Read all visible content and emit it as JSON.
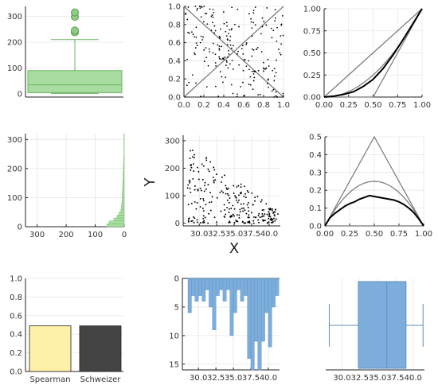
{
  "colors": {
    "green_fill": "#A8DCA0",
    "green_stroke": "#6DB463",
    "green_dot": "#8ECF84",
    "blue_fill": "#7DAEDB",
    "blue_stroke": "#5B8FC2",
    "line_gray": "#777777",
    "yellow": "#FFF0A8",
    "dark": "#444444",
    "dot": "#000000",
    "grid": "#e6e6e6"
  },
  "figure": {
    "x_axis_label": "X",
    "y_axis_label": "Y"
  },
  "chart_data": [
    {
      "id": "p1",
      "type": "box",
      "orientation": "vertical",
      "ylim": [
        0,
        320
      ],
      "yticks": [
        0,
        100,
        200,
        300
      ],
      "box": {
        "q1": 5,
        "median": 35,
        "q3": 90,
        "whisker_low": 2,
        "whisker_high": 210
      },
      "outliers": [
        238,
        245,
        298,
        315
      ]
    },
    {
      "id": "p2",
      "type": "scatter",
      "xlim": [
        0,
        1
      ],
      "ylim": [
        0,
        1
      ],
      "xticks": [
        0.0,
        0.2,
        0.4,
        0.6,
        0.8,
        1.0
      ],
      "yticks": [
        0.0,
        0.2,
        0.4,
        0.6,
        0.8,
        1.0
      ],
      "reference_lines": [
        {
          "from": [
            0,
            0
          ],
          "to": [
            1,
            1
          ]
        },
        {
          "from": [
            0,
            1
          ],
          "to": [
            1,
            0
          ]
        }
      ],
      "n_points": 220,
      "points_generated_from": "rank copula of (X, Y)"
    },
    {
      "id": "p3",
      "type": "line",
      "xlim": [
        0,
        1
      ],
      "ylim": [
        0,
        1
      ],
      "xticks": [
        0.0,
        0.25,
        0.5,
        0.75,
        1.0
      ],
      "yticks": [
        0.0,
        0.25,
        0.5,
        0.75,
        1.0
      ],
      "reference_lines": [
        {
          "x": [
            0,
            1
          ],
          "y": [
            0,
            1
          ]
        },
        {
          "x": [
            0,
            0.5,
            1
          ],
          "y": [
            0,
            0,
            1
          ]
        },
        {
          "function": "x^2"
        }
      ],
      "series": [
        {
          "x": [
            0,
            0.1,
            0.2,
            0.3,
            0.4,
            0.5,
            0.6,
            0.7,
            0.8,
            0.9,
            1.0
          ],
          "y": [
            0,
            0.01,
            0.03,
            0.06,
            0.12,
            0.2,
            0.32,
            0.47,
            0.64,
            0.82,
            1.0
          ]
        }
      ]
    },
    {
      "id": "p4",
      "type": "histogram",
      "orientation": "horizontal",
      "x_reversed": true,
      "xlim": [
        340,
        0
      ],
      "ylim": [
        0,
        320
      ],
      "xticks": [
        300,
        200,
        100,
        0
      ],
      "yticks": [
        0,
        100,
        200,
        300
      ],
      "bin_width": 10,
      "bins": [
        {
          "y": 0,
          "count": 60
        },
        {
          "y": 10,
          "count": 52
        },
        {
          "y": 20,
          "count": 36
        },
        {
          "y": 30,
          "count": 25
        },
        {
          "y": 40,
          "count": 18
        },
        {
          "y": 50,
          "count": 12
        },
        {
          "y": 60,
          "count": 10
        },
        {
          "y": 70,
          "count": 9
        },
        {
          "y": 80,
          "count": 8
        },
        {
          "y": 90,
          "count": 7
        },
        {
          "y": 100,
          "count": 7
        },
        {
          "y": 110,
          "count": 6
        },
        {
          "y": 120,
          "count": 6
        },
        {
          "y": 130,
          "count": 5
        },
        {
          "y": 140,
          "count": 5
        },
        {
          "y": 150,
          "count": 5
        },
        {
          "y": 160,
          "count": 4
        },
        {
          "y": 170,
          "count": 4
        },
        {
          "y": 180,
          "count": 4
        },
        {
          "y": 190,
          "count": 3
        },
        {
          "y": 200,
          "count": 3
        },
        {
          "y": 210,
          "count": 2
        },
        {
          "y": 220,
          "count": 2
        },
        {
          "y": 230,
          "count": 2
        },
        {
          "y": 240,
          "count": 1
        },
        {
          "y": 250,
          "count": 1
        },
        {
          "y": 260,
          "count": 1
        },
        {
          "y": 270,
          "count": 1
        },
        {
          "y": 280,
          "count": 1
        },
        {
          "y": 290,
          "count": 1
        },
        {
          "y": 300,
          "count": 1
        },
        {
          "y": 310,
          "count": 1
        }
      ]
    },
    {
      "id": "p5",
      "type": "scatter",
      "xlim": [
        27.7,
        41.6
      ],
      "ylim": [
        -10,
        320
      ],
      "xticks": [
        30.0,
        32.5,
        35.0,
        37.5,
        40.0
      ],
      "yticks": [
        0,
        100,
        200,
        300
      ],
      "xlabel": "X",
      "ylabel": "Y",
      "n_points": 260
    },
    {
      "id": "p6",
      "type": "line",
      "xlim": [
        0,
        1
      ],
      "ylim": [
        0,
        0.5
      ],
      "xticks": [
        0.0,
        0.25,
        0.5,
        0.75,
        1.0
      ],
      "yticks": [
        0.0,
        0.1,
        0.2,
        0.3,
        0.4,
        0.5
      ],
      "reference_lines": [
        {
          "x": [
            0,
            0.5,
            1
          ],
          "y": [
            0,
            0.5,
            0
          ]
        },
        {
          "function": "x(1-x)"
        },
        {
          "y": 0
        }
      ],
      "series": [
        {
          "x": [
            0,
            0.05,
            0.1,
            0.15,
            0.2,
            0.25,
            0.3,
            0.35,
            0.4,
            0.45,
            0.5,
            0.55,
            0.6,
            0.65,
            0.7,
            0.75,
            0.8,
            0.85,
            0.9,
            0.95,
            1.0
          ],
          "y": [
            0,
            0.045,
            0.07,
            0.09,
            0.11,
            0.125,
            0.135,
            0.15,
            0.16,
            0.17,
            0.165,
            0.16,
            0.155,
            0.15,
            0.145,
            0.135,
            0.12,
            0.1,
            0.075,
            0.04,
            0
          ]
        }
      ]
    },
    {
      "id": "p7",
      "type": "bar",
      "categories": [
        "Spearman",
        "Schweizer"
      ],
      "values": [
        0.49,
        0.49
      ],
      "ylim": [
        0,
        1
      ],
      "yticks": [
        0.0,
        0.2,
        0.4,
        0.6,
        0.8,
        1.0
      ],
      "bar_colors": [
        "#FFF0A8",
        "#444444"
      ]
    },
    {
      "id": "p8",
      "type": "histogram",
      "orientation": "vertical",
      "y_reversed": true,
      "xlim": [
        27.7,
        41.6
      ],
      "ylim": [
        0,
        16
      ],
      "xticks": [
        30.0,
        32.5,
        35.0,
        37.5,
        40.0
      ],
      "yticks": [
        0,
        5,
        10,
        15
      ],
      "bin_width": 0.5,
      "bins": [
        {
          "x": 28.5,
          "count": 6
        },
        {
          "x": 29.0,
          "count": 3
        },
        {
          "x": 29.5,
          "count": 4
        },
        {
          "x": 30.0,
          "count": 3
        },
        {
          "x": 30.5,
          "count": 4
        },
        {
          "x": 31.0,
          "count": 2
        },
        {
          "x": 31.5,
          "count": 5
        },
        {
          "x": 32.0,
          "count": 9
        },
        {
          "x": 32.5,
          "count": 3
        },
        {
          "x": 33.0,
          "count": 2
        },
        {
          "x": 33.5,
          "count": 4
        },
        {
          "x": 34.0,
          "count": 2
        },
        {
          "x": 34.5,
          "count": 10
        },
        {
          "x": 35.0,
          "count": 6
        },
        {
          "x": 35.5,
          "count": 2
        },
        {
          "x": 36.0,
          "count": 4
        },
        {
          "x": 36.5,
          "count": 3
        },
        {
          "x": 37.0,
          "count": 14
        },
        {
          "x": 37.5,
          "count": 16
        },
        {
          "x": 38.0,
          "count": 11
        },
        {
          "x": 38.5,
          "count": 16
        },
        {
          "x": 39.0,
          "count": 11
        },
        {
          "x": 39.5,
          "count": 6
        },
        {
          "x": 40.0,
          "count": 12
        },
        {
          "x": 40.5,
          "count": 5
        },
        {
          "x": 41.0,
          "count": 3
        }
      ]
    },
    {
      "id": "p9",
      "type": "box",
      "orientation": "horizontal",
      "xlim": [
        27.7,
        41.6
      ],
      "xticks": [
        30.0,
        32.5,
        35.0,
        37.5,
        40.0
      ],
      "box": {
        "whisker_low": 28.2,
        "q1": 32.3,
        "median": 36.3,
        "q3": 39.0,
        "whisker_high": 41.4
      }
    }
  ]
}
